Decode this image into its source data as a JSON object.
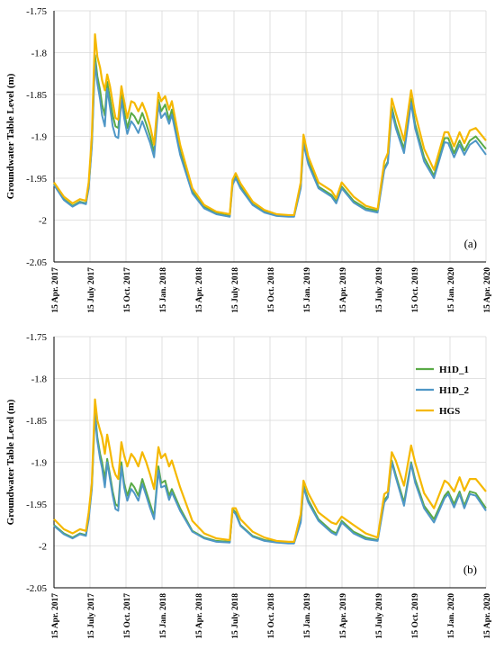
{
  "figure": {
    "series_names": [
      "H1D_1",
      "H1D_2",
      "HGS"
    ],
    "colors": {
      "H1D_1": "#5aaa46",
      "H1D_2": "#4f97c6",
      "HGS": "#f5b800",
      "axis": "#000000",
      "grid": "#d9d9d9"
    }
  },
  "chart_data": [
    {
      "type": "line",
      "panel_label": "(a)",
      "ylabel": "Groundwater Table Level (m)",
      "xlabel": "",
      "ylim": [
        -2.05,
        -1.75
      ],
      "yticks": [
        -1.75,
        -1.8,
        -1.85,
        -1.9,
        -1.95,
        -2,
        -2.05
      ],
      "ytick_labels": [
        "-1.75",
        "-1.8",
        "-1.85",
        "-1.9",
        "-1.95",
        "-2",
        "-2.05"
      ],
      "xlim": [
        "2017-04-15",
        "2020-04-15"
      ],
      "x_tick_labels": [
        "15 Apr. 2017",
        "15 July 2017",
        "15 Oct. 2017",
        "15 Jan. 2018",
        "15 Apr. 2018",
        "15 July 2018",
        "15 Oct. 2018",
        "15 Jan. 2019",
        "15 Apr. 2019",
        "15 July 2019",
        "15 Oct. 2019",
        "15 Jan. 2020",
        "15 Apr. 2020"
      ],
      "grid": true,
      "legend": "none",
      "x": [
        "2017-04-15",
        "2017-05-10",
        "2017-06-01",
        "2017-06-20",
        "2017-07-05",
        "2017-07-12",
        "2017-07-20",
        "2017-07-28",
        "2017-08-03",
        "2017-08-10",
        "2017-08-15",
        "2017-08-22",
        "2017-08-28",
        "2017-09-04",
        "2017-09-11",
        "2017-09-18",
        "2017-09-25",
        "2017-10-03",
        "2017-10-10",
        "2017-10-18",
        "2017-10-28",
        "2017-11-05",
        "2017-11-15",
        "2017-11-25",
        "2017-12-05",
        "2017-12-15",
        "2017-12-25",
        "2018-01-05",
        "2018-01-12",
        "2018-01-22",
        "2018-02-01",
        "2018-02-08",
        "2018-03-01",
        "2018-04-01",
        "2018-05-01",
        "2018-06-01",
        "2018-07-05",
        "2018-07-12",
        "2018-07-20",
        "2018-08-01",
        "2018-09-01",
        "2018-10-01",
        "2018-11-01",
        "2018-12-01",
        "2018-12-15",
        "2019-01-01",
        "2019-01-08",
        "2019-01-20",
        "2019-02-15",
        "2019-03-20",
        "2019-04-01",
        "2019-04-15",
        "2019-05-15",
        "2019-06-15",
        "2019-07-15",
        "2019-08-01",
        "2019-08-10",
        "2019-08-20",
        "2019-08-30",
        "2019-09-20",
        "2019-10-08",
        "2019-10-18",
        "2019-11-10",
        "2019-12-05",
        "2020-01-01",
        "2020-01-10",
        "2020-01-25",
        "2020-02-08",
        "2020-02-20",
        "2020-03-05",
        "2020-03-20",
        "2020-04-15"
      ],
      "series": [
        {
          "name": "H1D_1",
          "values": [
            -1.957,
            -1.975,
            -1.983,
            -1.978,
            -1.98,
            -1.96,
            -1.91,
            -1.803,
            -1.828,
            -1.845,
            -1.862,
            -1.875,
            -1.835,
            -1.855,
            -1.875,
            -1.888,
            -1.89,
            -1.848,
            -1.87,
            -1.89,
            -1.872,
            -1.876,
            -1.885,
            -1.872,
            -1.885,
            -1.9,
            -1.92,
            -1.856,
            -1.87,
            -1.862,
            -1.88,
            -1.868,
            -1.918,
            -1.966,
            -1.984,
            -1.991,
            -1.994,
            -1.955,
            -1.948,
            -1.96,
            -1.981,
            -1.99,
            -1.994,
            -1.995,
            -1.995,
            -1.96,
            -1.906,
            -1.93,
            -1.96,
            -1.97,
            -1.978,
            -1.96,
            -1.977,
            -1.986,
            -1.989,
            -1.938,
            -1.93,
            -1.865,
            -1.885,
            -1.915,
            -1.855,
            -1.885,
            -1.925,
            -1.947,
            -1.902,
            -1.902,
            -1.92,
            -1.905,
            -1.917,
            -1.905,
            -1.9,
            -1.915
          ]
        },
        {
          "name": "H1D_2",
          "values": [
            -1.958,
            -1.976,
            -1.984,
            -1.979,
            -1.981,
            -1.962,
            -1.912,
            -1.812,
            -1.837,
            -1.856,
            -1.875,
            -1.888,
            -1.843,
            -1.865,
            -1.888,
            -1.9,
            -1.902,
            -1.856,
            -1.878,
            -1.897,
            -1.882,
            -1.887,
            -1.896,
            -1.882,
            -1.895,
            -1.908,
            -1.925,
            -1.862,
            -1.878,
            -1.872,
            -1.885,
            -1.874,
            -1.922,
            -1.968,
            -1.986,
            -1.993,
            -1.996,
            -1.958,
            -1.95,
            -1.962,
            -1.982,
            -1.991,
            -1.995,
            -1.996,
            -1.996,
            -1.962,
            -1.909,
            -1.933,
            -1.962,
            -1.972,
            -1.98,
            -1.962,
            -1.979,
            -1.988,
            -1.991,
            -1.94,
            -1.932,
            -1.87,
            -1.89,
            -1.92,
            -1.86,
            -1.89,
            -1.93,
            -1.95,
            -1.907,
            -1.908,
            -1.925,
            -1.91,
            -1.922,
            -1.91,
            -1.905,
            -1.922
          ]
        },
        {
          "name": "HGS",
          "values": [
            -1.955,
            -1.972,
            -1.98,
            -1.975,
            -1.977,
            -1.955,
            -1.9,
            -1.778,
            -1.805,
            -1.818,
            -1.833,
            -1.845,
            -1.826,
            -1.84,
            -1.86,
            -1.878,
            -1.88,
            -1.84,
            -1.858,
            -1.878,
            -1.858,
            -1.86,
            -1.87,
            -1.86,
            -1.872,
            -1.888,
            -1.91,
            -1.848,
            -1.858,
            -1.852,
            -1.868,
            -1.858,
            -1.91,
            -1.962,
            -1.982,
            -1.99,
            -1.993,
            -1.952,
            -1.944,
            -1.956,
            -1.978,
            -1.988,
            -1.993,
            -1.994,
            -1.994,
            -1.955,
            -1.898,
            -1.924,
            -1.955,
            -1.965,
            -1.974,
            -1.955,
            -1.972,
            -1.983,
            -1.987,
            -1.93,
            -1.92,
            -1.855,
            -1.872,
            -1.905,
            -1.845,
            -1.872,
            -1.915,
            -1.94,
            -1.895,
            -1.895,
            -1.912,
            -1.895,
            -1.908,
            -1.893,
            -1.89,
            -1.905
          ]
        }
      ]
    },
    {
      "type": "line",
      "panel_label": "(b)",
      "ylabel": "Groundwater Table Level (m)",
      "xlabel": "",
      "ylim": [
        -2.05,
        -1.75
      ],
      "yticks": [
        -1.75,
        -1.8,
        -1.85,
        -1.9,
        -1.95,
        -2,
        -2.05
      ],
      "ytick_labels": [
        "-1.75",
        "-1.8",
        "-1.85",
        "-1.9",
        "-1.95",
        "-2",
        "-2.05"
      ],
      "xlim": [
        "2017-04-15",
        "2020-04-15"
      ],
      "x_tick_labels": [
        "15 Apr. 2017",
        "15 July 2017",
        "15 Oct. 2017",
        "15 Jan. 2018",
        "15 Apr. 2018",
        "15 July 2018",
        "15 Oct. 2018",
        "15 Jan. 2019",
        "15 Apr. 2019",
        "15 July 2019",
        "15 Oct. 2019",
        "15 Jan. 2020",
        "15 Apr. 2020"
      ],
      "grid": true,
      "legend": "top-right",
      "x": [
        "2017-04-15",
        "2017-05-10",
        "2017-06-01",
        "2017-06-20",
        "2017-07-05",
        "2017-07-12",
        "2017-07-20",
        "2017-07-28",
        "2017-08-03",
        "2017-08-10",
        "2017-08-15",
        "2017-08-22",
        "2017-08-28",
        "2017-09-04",
        "2017-09-11",
        "2017-09-18",
        "2017-09-25",
        "2017-10-03",
        "2017-10-10",
        "2017-10-18",
        "2017-10-28",
        "2017-11-05",
        "2017-11-15",
        "2017-11-25",
        "2017-12-05",
        "2017-12-15",
        "2017-12-25",
        "2018-01-05",
        "2018-01-12",
        "2018-01-22",
        "2018-02-01",
        "2018-02-08",
        "2018-03-01",
        "2018-04-01",
        "2018-05-01",
        "2018-06-01",
        "2018-07-05",
        "2018-07-12",
        "2018-07-20",
        "2018-08-01",
        "2018-09-01",
        "2018-10-01",
        "2018-11-01",
        "2018-12-01",
        "2018-12-15",
        "2019-01-01",
        "2019-01-08",
        "2019-01-20",
        "2019-02-15",
        "2019-03-20",
        "2019-04-01",
        "2019-04-15",
        "2019-05-15",
        "2019-06-15",
        "2019-07-15",
        "2019-08-01",
        "2019-08-10",
        "2019-08-20",
        "2019-08-30",
        "2019-09-20",
        "2019-10-08",
        "2019-10-18",
        "2019-11-10",
        "2019-12-05",
        "2020-01-01",
        "2020-01-10",
        "2020-01-25",
        "2020-02-08",
        "2020-02-20",
        "2020-03-05",
        "2020-03-20",
        "2020-04-15"
      ],
      "series": [
        {
          "name": "H1D_1",
          "values": [
            -1.975,
            -1.985,
            -1.99,
            -1.985,
            -1.987,
            -1.965,
            -1.93,
            -1.84,
            -1.87,
            -1.89,
            -1.9,
            -1.92,
            -1.896,
            -1.915,
            -1.935,
            -1.95,
            -1.953,
            -1.9,
            -1.925,
            -1.94,
            -1.925,
            -1.93,
            -1.94,
            -1.92,
            -1.935,
            -1.95,
            -1.965,
            -1.905,
            -1.925,
            -1.922,
            -1.94,
            -1.932,
            -1.955,
            -1.982,
            -1.99,
            -1.994,
            -1.995,
            -1.956,
            -1.96,
            -1.975,
            -1.988,
            -1.993,
            -1.995,
            -1.996,
            -1.996,
            -1.97,
            -1.928,
            -1.945,
            -1.968,
            -1.982,
            -1.985,
            -1.97,
            -1.983,
            -1.99,
            -1.993,
            -1.945,
            -1.94,
            -1.898,
            -1.915,
            -1.948,
            -1.9,
            -1.92,
            -1.952,
            -1.968,
            -1.94,
            -1.935,
            -1.95,
            -1.935,
            -1.952,
            -1.935,
            -1.937,
            -1.955
          ]
        },
        {
          "name": "H1D_2",
          "values": [
            -1.976,
            -1.986,
            -1.991,
            -1.986,
            -1.988,
            -1.968,
            -1.932,
            -1.843,
            -1.875,
            -1.896,
            -1.907,
            -1.93,
            -1.9,
            -1.92,
            -1.94,
            -1.956,
            -1.958,
            -1.905,
            -1.93,
            -1.946,
            -1.932,
            -1.937,
            -1.946,
            -1.926,
            -1.94,
            -1.955,
            -1.968,
            -1.91,
            -1.93,
            -1.928,
            -1.945,
            -1.936,
            -1.958,
            -1.983,
            -1.991,
            -1.995,
            -1.996,
            -1.958,
            -1.962,
            -1.976,
            -1.989,
            -1.994,
            -1.996,
            -1.997,
            -1.997,
            -1.972,
            -1.93,
            -1.948,
            -1.97,
            -1.984,
            -1.987,
            -1.972,
            -1.985,
            -1.992,
            -1.994,
            -1.948,
            -1.942,
            -1.9,
            -1.918,
            -1.952,
            -1.902,
            -1.924,
            -1.955,
            -1.972,
            -1.943,
            -1.938,
            -1.954,
            -1.938,
            -1.955,
            -1.938,
            -1.94,
            -1.958
          ]
        },
        {
          "name": "HGS",
          "values": [
            -1.968,
            -1.98,
            -1.985,
            -1.98,
            -1.982,
            -1.96,
            -1.925,
            -1.825,
            -1.85,
            -1.862,
            -1.87,
            -1.89,
            -1.867,
            -1.885,
            -1.905,
            -1.915,
            -1.92,
            -1.876,
            -1.892,
            -1.905,
            -1.89,
            -1.895,
            -1.905,
            -1.888,
            -1.9,
            -1.915,
            -1.932,
            -1.882,
            -1.895,
            -1.89,
            -1.905,
            -1.898,
            -1.93,
            -1.97,
            -1.985,
            -1.991,
            -1.993,
            -1.955,
            -1.955,
            -1.968,
            -1.983,
            -1.99,
            -1.994,
            -1.995,
            -1.995,
            -1.962,
            -1.922,
            -1.937,
            -1.96,
            -1.972,
            -1.974,
            -1.965,
            -1.975,
            -1.985,
            -1.99,
            -1.938,
            -1.935,
            -1.888,
            -1.898,
            -1.928,
            -1.88,
            -1.9,
            -1.937,
            -1.955,
            -1.922,
            -1.925,
            -1.935,
            -1.918,
            -1.934,
            -1.92,
            -1.92,
            -1.935
          ]
        }
      ]
    }
  ]
}
